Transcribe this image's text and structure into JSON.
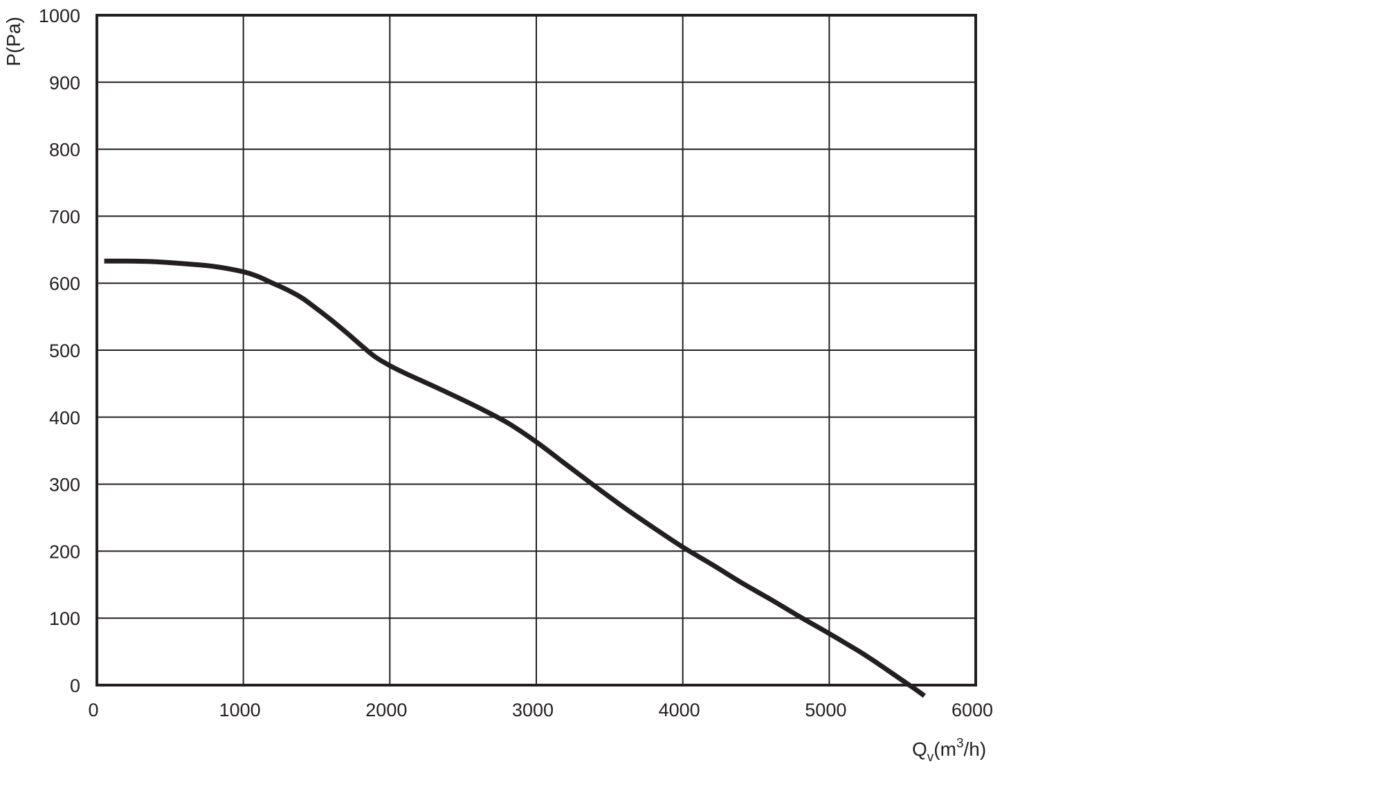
{
  "chart_data": {
    "type": "line",
    "title": "",
    "ylabel": "P(Pa)",
    "xlabel": {
      "main": "Q",
      "subscript": "v",
      "unit_open": "(m",
      "superscript": "3",
      "unit_close": "/h)"
    },
    "xlim": [
      0,
      6000
    ],
    "ylim": [
      0,
      1000
    ],
    "x_ticks": [
      "0",
      "1000",
      "2000",
      "3000",
      "4000",
      "5000",
      "6000"
    ],
    "y_ticks": [
      "0",
      "100",
      "200",
      "300",
      "400",
      "500",
      "600",
      "700",
      "800",
      "900",
      "1000"
    ],
    "grid": true,
    "legend": "none",
    "color": "#231f20",
    "series": [
      {
        "x": [
          50,
          200,
          400,
          600,
          800,
          1000,
          1100,
          1200,
          1300,
          1400,
          1500,
          1600,
          1700,
          1800,
          1900,
          2000,
          2100,
          2200,
          2400,
          2600,
          2800,
          3000,
          3200,
          3400,
          3600,
          3800,
          4000,
          4200,
          4400,
          4600,
          4800,
          5000,
          5100,
          5200,
          5300,
          5400,
          5500,
          5600,
          5650
        ],
        "y": [
          633,
          633,
          632,
          629,
          625,
          617,
          610,
          600,
          590,
          578,
          562,
          545,
          527,
          508,
          490,
          477,
          466,
          456,
          436,
          415,
          392,
          363,
          330,
          297,
          265,
          235,
          206,
          180,
          153,
          128,
          102,
          77,
          64,
          51,
          37,
          22,
          7,
          -8,
          -16
        ]
      }
    ]
  }
}
